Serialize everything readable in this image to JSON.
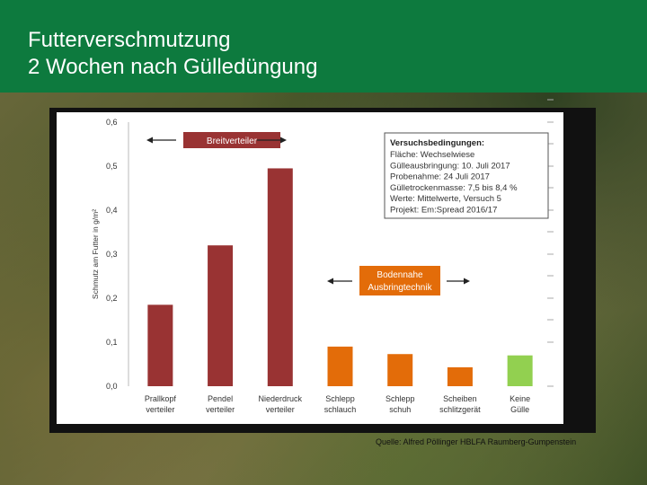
{
  "header": {
    "title_line1": "Futterverschmutzung",
    "title_line2": "2 Wochen nach Gülledüngung"
  },
  "source": "Quelle: Alfred Pöllinger HBLFA Raumberg-Gumpenstein",
  "colors": {
    "header": "#0d7a3e",
    "breitverteiler": "#993333",
    "bodennah": "#e36c09",
    "keine_guelle": "#92d050"
  },
  "chart_data": {
    "type": "bar",
    "ylabel": "Schmutz am Futter in g/m²",
    "ylim": [
      0,
      0.6
    ],
    "yticks": [
      "0,0",
      "0,1",
      "0,2",
      "0,3",
      "0,4",
      "0,5",
      "0,6"
    ],
    "categories": [
      [
        "Prallkopf",
        "verteiler"
      ],
      [
        "Pendel",
        "verteiler"
      ],
      [
        "Niederdruck",
        "verteiler"
      ],
      [
        "Schlepp",
        "schlauch"
      ],
      [
        "Schlepp",
        "schuh"
      ],
      [
        "Scheiben",
        "schlitzgerät"
      ],
      [
        "Keine",
        "Gülle"
      ]
    ],
    "values": [
      0.185,
      0.32,
      0.495,
      0.09,
      0.073,
      0.043,
      0.07
    ],
    "bar_groups": [
      "breit",
      "breit",
      "breit",
      "bodennah",
      "bodennah",
      "bodennah",
      "keine"
    ],
    "annotations": {
      "breitverteiler": "Breitverteiler",
      "bodennah_line1": "Bodennahe",
      "bodennah_line2": "Ausbringtechnik"
    },
    "legend_box": {
      "title": "Versuchsbedingungen:",
      "lines": [
        "Fläche: Wechselwiese",
        "Gülleausbringung: 10. Juli 2017",
        "Probenahme: 24 Juli 2017",
        "Gülletrockenmasse: 7,5 bis 8,4 %",
        "Werte: Mittelwerte, Versuch 5",
        "Projekt: Em:Spread 2016/17"
      ]
    }
  }
}
